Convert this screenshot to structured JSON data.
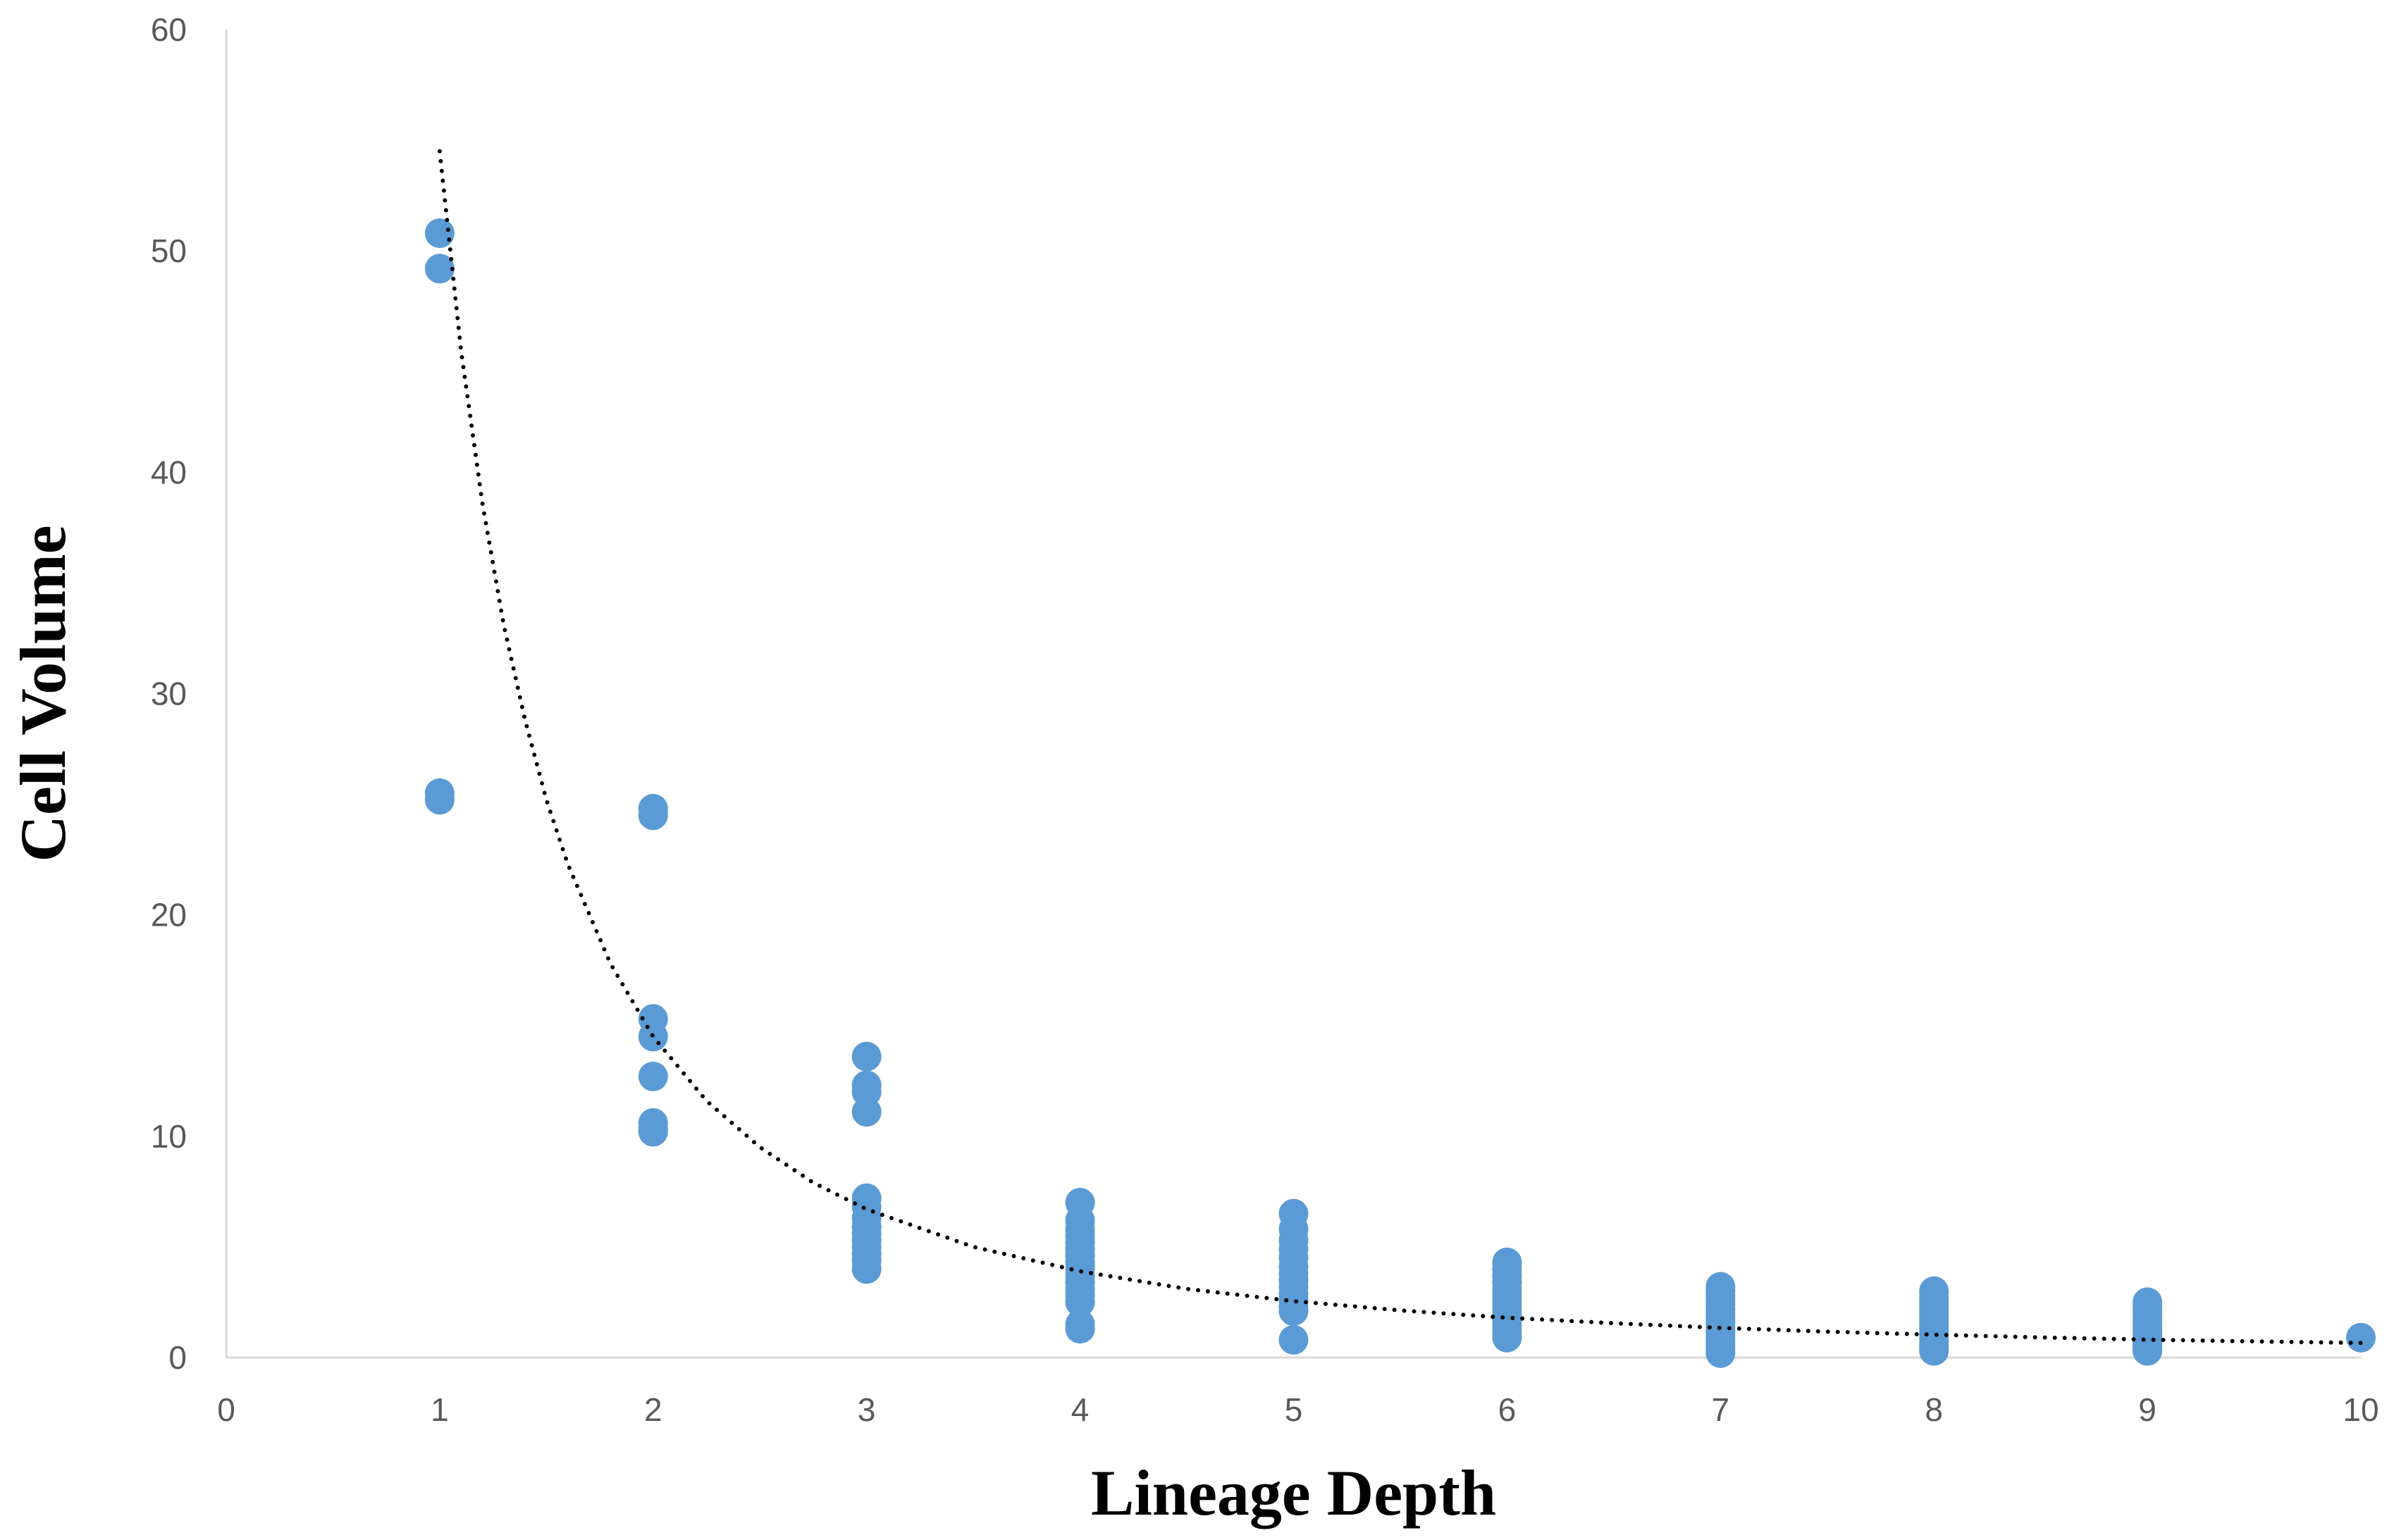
{
  "chart_data": {
    "type": "scatter",
    "title": "",
    "xlabel": "Lineage Depth",
    "ylabel": "Cell Volume",
    "xlim": [
      0,
      10
    ],
    "ylim": [
      0,
      60
    ],
    "x_ticks": [
      0,
      1,
      2,
      3,
      4,
      5,
      6,
      7,
      8,
      9,
      10
    ],
    "y_ticks": [
      0,
      10,
      20,
      30,
      40,
      50,
      60
    ],
    "grid": false,
    "legend": "none",
    "colors": {
      "points": "#5b9bd5",
      "trendline": "#000000",
      "axis": "#d9d9d9",
      "tick_text": "#595959"
    },
    "series": [
      {
        "x": [
          1,
          1,
          1,
          1,
          2,
          2,
          2,
          2,
          2,
          2,
          2,
          2,
          3,
          3,
          3,
          3,
          3,
          3,
          3,
          3,
          3,
          3,
          3,
          3,
          3,
          3,
          4,
          4,
          4,
          4,
          4,
          4,
          4,
          4,
          4,
          4,
          4,
          4,
          4,
          4,
          4,
          4,
          5,
          5,
          5,
          5,
          5,
          5,
          5,
          5,
          5,
          5,
          5,
          5,
          5,
          5,
          6,
          6,
          6,
          6,
          6,
          6,
          6,
          6,
          6,
          6,
          6,
          6,
          6,
          6,
          6,
          6,
          7,
          7,
          7,
          7,
          7,
          7,
          7,
          7,
          7,
          7,
          7,
          7,
          7,
          7,
          7,
          7,
          8,
          8,
          8,
          8,
          8,
          8,
          8,
          8,
          8,
          8,
          8,
          8,
          8,
          8,
          8,
          9,
          9,
          9,
          9,
          9,
          9,
          9,
          9,
          9,
          9,
          9,
          9,
          9,
          9,
          10
        ],
        "y": [
          50.8,
          49.2,
          25.5,
          25.2,
          24.8,
          24.5,
          15.3,
          14.5,
          12.7,
          10.6,
          10.3,
          10.2,
          13.6,
          12.3,
          12.0,
          11.1,
          7.2,
          6.8,
          6.3,
          5.9,
          5.6,
          5.3,
          5.0,
          4.7,
          4.4,
          4.0,
          7.0,
          6.2,
          5.8,
          5.5,
          5.2,
          4.9,
          4.6,
          4.3,
          4.0,
          3.7,
          3.4,
          3.1,
          2.8,
          2.5,
          1.5,
          1.3,
          6.5,
          5.8,
          5.3,
          4.9,
          4.5,
          4.1,
          3.8,
          3.5,
          3.2,
          2.9,
          2.6,
          2.3,
          2.1,
          0.8,
          4.3,
          4.0,
          3.7,
          3.4,
          3.1,
          2.9,
          2.7,
          2.5,
          2.3,
          2.1,
          1.9,
          1.7,
          1.5,
          1.3,
          1.1,
          0.9,
          3.2,
          3.0,
          2.8,
          2.6,
          2.4,
          2.2,
          2.0,
          1.8,
          1.6,
          1.4,
          1.2,
          1.0,
          0.8,
          0.6,
          0.4,
          0.2,
          3.0,
          2.7,
          2.5,
          2.3,
          2.1,
          1.9,
          1.7,
          1.5,
          1.3,
          1.1,
          0.9,
          0.7,
          0.5,
          0.4,
          0.3,
          2.5,
          2.3,
          2.1,
          1.9,
          1.7,
          1.5,
          1.3,
          1.1,
          0.9,
          0.7,
          0.6,
          0.5,
          0.4,
          0.3,
          0.9
        ]
      }
    ],
    "trendline": {
      "type": "power",
      "style": "dotted",
      "x": [
        1.0,
        1.1,
        1.2,
        1.3,
        1.4,
        1.5,
        1.6,
        1.8,
        2.0,
        2.25,
        2.5,
        2.75,
        3.0,
        3.5,
        4.0,
        4.5,
        5.0,
        5.5,
        6.0,
        6.5,
        7.0,
        7.5,
        8.0,
        8.5,
        9.0,
        9.5,
        10.0
      ],
      "y": [
        54.5,
        45.5,
        38.6,
        33.1,
        28.8,
        25.2,
        22.3,
        17.8,
        14.5,
        11.6,
        9.5,
        7.9,
        6.7,
        5.0,
        3.9,
        3.1,
        2.55,
        2.13,
        1.8,
        1.55,
        1.34,
        1.17,
        1.03,
        0.91,
        0.81,
        0.73,
        0.66
      ]
    }
  }
}
